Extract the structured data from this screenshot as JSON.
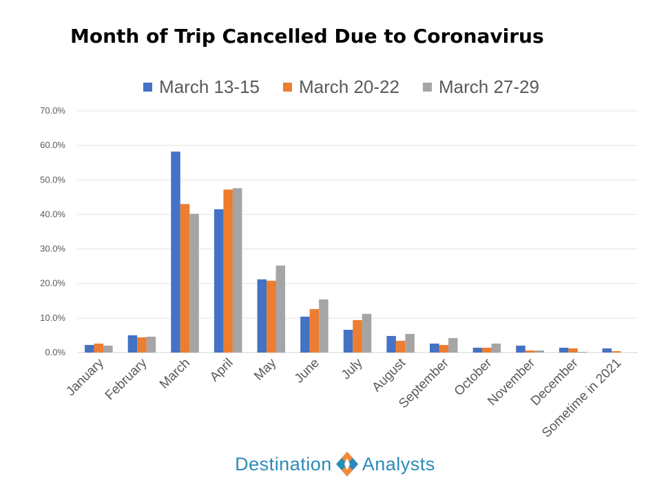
{
  "chart_data": {
    "type": "bar",
    "title": "Month of Trip Cancelled Due to Coronavirus",
    "categories": [
      "January",
      "February",
      "March",
      "April",
      "May",
      "June",
      "July",
      "August",
      "September",
      "October",
      "November",
      "December",
      "Sometime in 2021"
    ],
    "series": [
      {
        "name": "March 13-15",
        "color": "#4472c4",
        "values": [
          2.2,
          5.0,
          58.2,
          41.5,
          21.2,
          10.4,
          6.6,
          4.8,
          2.6,
          1.4,
          2.0,
          1.4,
          1.2
        ]
      },
      {
        "name": "March 20-22",
        "color": "#ed7d31",
        "values": [
          2.6,
          4.4,
          43.0,
          47.2,
          20.8,
          12.6,
          9.4,
          3.4,
          2.2,
          1.4,
          0.6,
          1.2,
          0.4
        ]
      },
      {
        "name": "March 27-29",
        "color": "#a5a5a5",
        "values": [
          2.0,
          4.6,
          40.2,
          47.6,
          25.2,
          15.4,
          11.2,
          5.4,
          4.2,
          2.6,
          0.6,
          0.2,
          0.0
        ]
      }
    ],
    "ylim": [
      0,
      70
    ],
    "yticks": [
      "0.0%",
      "10.0%",
      "20.0%",
      "30.0%",
      "40.0%",
      "50.0%",
      "60.0%",
      "70.0%"
    ],
    "grid": true,
    "legend": "top-center",
    "xlabel": "",
    "ylabel": ""
  },
  "logo": {
    "left": "Destination",
    "right": "Analysts"
  }
}
